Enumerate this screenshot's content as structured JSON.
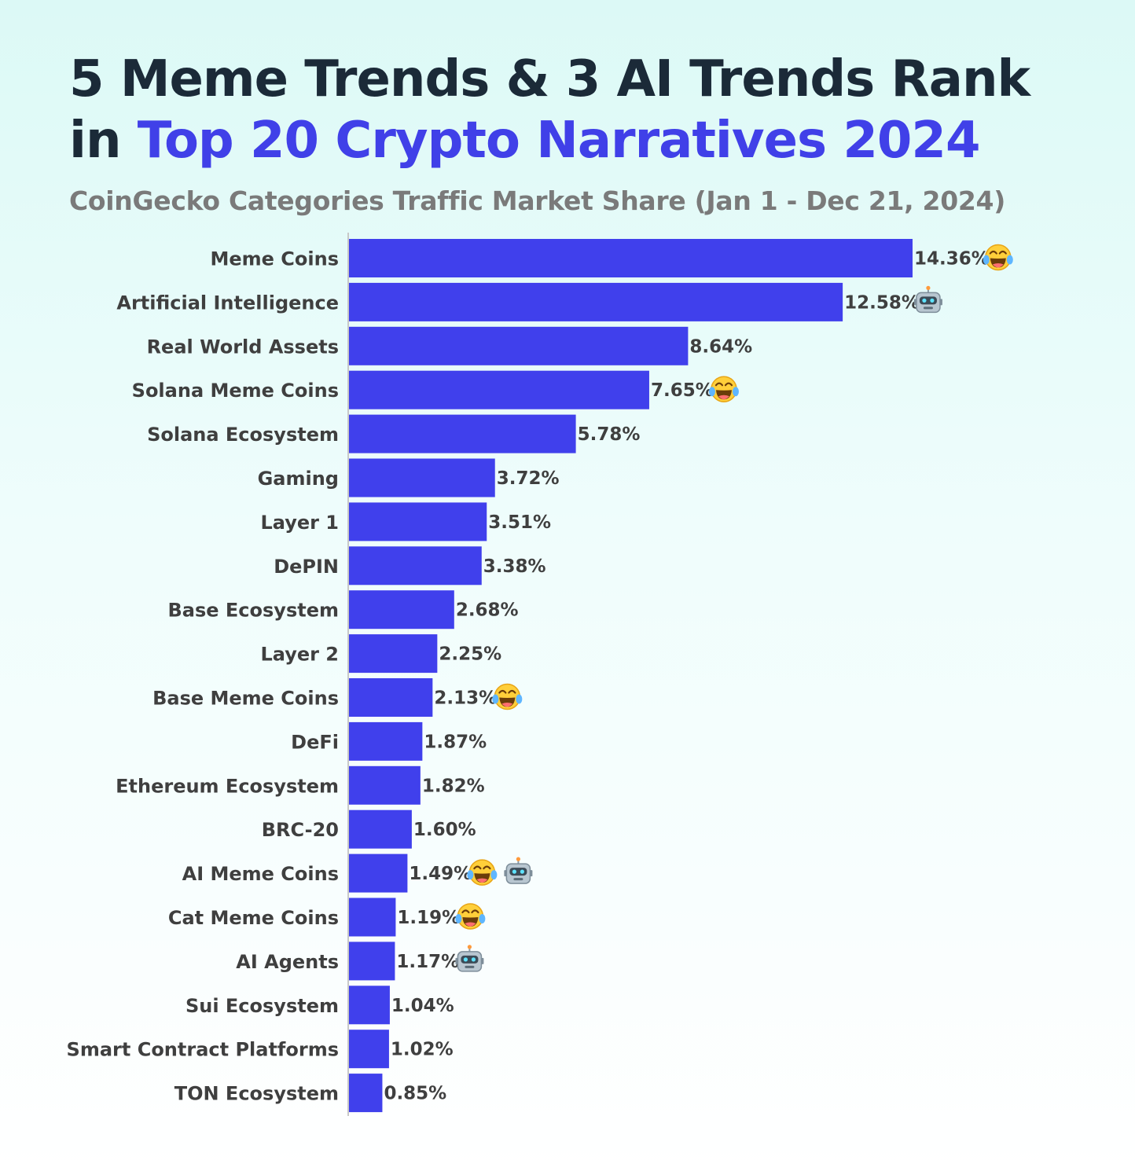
{
  "header": {
    "title_line1": "5 Meme Trends & 3 AI Trends Rank",
    "title_line2_prefix": "in ",
    "title_line2_accent": "Top 20 Crypto Narratives 2024",
    "subtitle": "CoinGecko Categories Traffic Market Share (Jan 1 - Dec 21, 2024)"
  },
  "colors": {
    "bar": "#4040ec",
    "accent": "#4040e8",
    "title": "#1b2a38",
    "subtitle": "#7a7a7a",
    "label": "#3f3f3f",
    "axis": "#c8c8c8"
  },
  "chart_data": {
    "type": "bar",
    "orientation": "horizontal",
    "categories": [
      "Meme Coins",
      "Artificial Intelligence",
      "Real World Assets",
      "Solana Meme Coins",
      "Solana Ecosystem",
      "Gaming",
      "Layer 1",
      "DePIN",
      "Base Ecosystem",
      "Layer 2",
      "Base Meme Coins",
      "DeFi",
      "Ethereum Ecosystem",
      "BRC-20",
      "AI Meme Coins",
      "Cat Meme Coins",
      "AI Agents",
      "Sui Ecosystem",
      "Smart Contract Platforms",
      "TON Ecosystem"
    ],
    "values": [
      14.36,
      12.58,
      8.64,
      7.65,
      5.78,
      3.72,
      3.51,
      3.38,
      2.68,
      2.25,
      2.13,
      1.87,
      1.82,
      1.6,
      1.49,
      1.19,
      1.17,
      1.04,
      1.02,
      0.85
    ],
    "value_labels": [
      "14.36%",
      "12.58%",
      "8.64%",
      "7.65%",
      "5.78%",
      "3.72%",
      "3.51%",
      "3.38%",
      "2.68%",
      "2.25%",
      "2.13%",
      "1.87%",
      "1.82%",
      "1.60%",
      "1.49%",
      "1.19%",
      "1.17%",
      "1.04%",
      "1.02%",
      "0.85%"
    ],
    "markers": [
      [
        "laughing-emoji-icon"
      ],
      [
        "robot-emoji-icon"
      ],
      [],
      [
        "laughing-emoji-icon"
      ],
      [],
      [],
      [],
      [],
      [],
      [],
      [
        "laughing-emoji-icon"
      ],
      [],
      [],
      [],
      [
        "laughing-emoji-icon",
        "robot-emoji-icon"
      ],
      [
        "laughing-emoji-icon"
      ],
      [
        "robot-emoji-icon"
      ],
      [],
      [],
      []
    ],
    "xlim": [
      0,
      14.36
    ],
    "grid": false,
    "legend": "none"
  }
}
